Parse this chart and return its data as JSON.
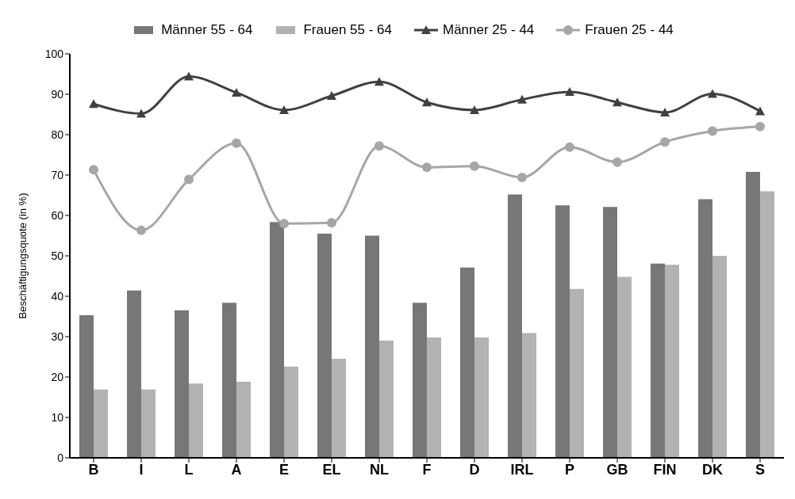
{
  "chart_data": {
    "type": "bar",
    "ylabel": "Beschäftigungsquote (in %)",
    "categories": [
      "B",
      "I",
      "L",
      "A",
      "E",
      "EL",
      "NL",
      "F",
      "D",
      "IRL",
      "P",
      "GB",
      "FIN",
      "DK",
      "S"
    ],
    "series": [
      {
        "name": "Männer 55 - 64",
        "color": "#777777",
        "values": [
          35.3,
          41.4,
          36.5,
          38.4,
          58.4,
          55.5,
          55.0,
          38.4,
          47.1,
          65.2,
          62.5,
          62.1,
          48.1,
          64.0,
          70.8
        ]
      },
      {
        "name": "Frauen 55 - 64",
        "color": "#b2b2b2",
        "values": [
          16.9,
          16.9,
          18.4,
          18.8,
          22.6,
          24.5,
          29.0,
          29.8,
          29.8,
          30.9,
          41.8,
          44.8,
          47.8,
          50.0,
          66.0
        ]
      },
      {
        "name": "Männer 25 - 44",
        "type": "line",
        "color": "#404040",
        "marker": "triangle",
        "values": [
          87.6,
          85.2,
          94.4,
          90.4,
          86.1,
          89.6,
          93.1,
          88.0,
          86.1,
          88.7,
          90.6,
          88.0,
          85.5,
          90.1,
          85.8
        ]
      },
      {
        "name": "Frauen 25 - 44",
        "type": "line",
        "color": "#a6a6a6",
        "marker": "circle",
        "values": [
          71.3,
          56.3,
          68.9,
          77.9,
          58.0,
          58.2,
          77.2,
          71.9,
          72.2,
          69.4,
          76.9,
          73.2,
          78.2,
          80.9,
          82.0
        ]
      }
    ],
    "ylim": [
      0,
      100
    ],
    "yticks": [
      0,
      10,
      20,
      30,
      40,
      50,
      60,
      70,
      80,
      90,
      100
    ],
    "grid": false,
    "legend": "top",
    "line_style": "solid"
  }
}
